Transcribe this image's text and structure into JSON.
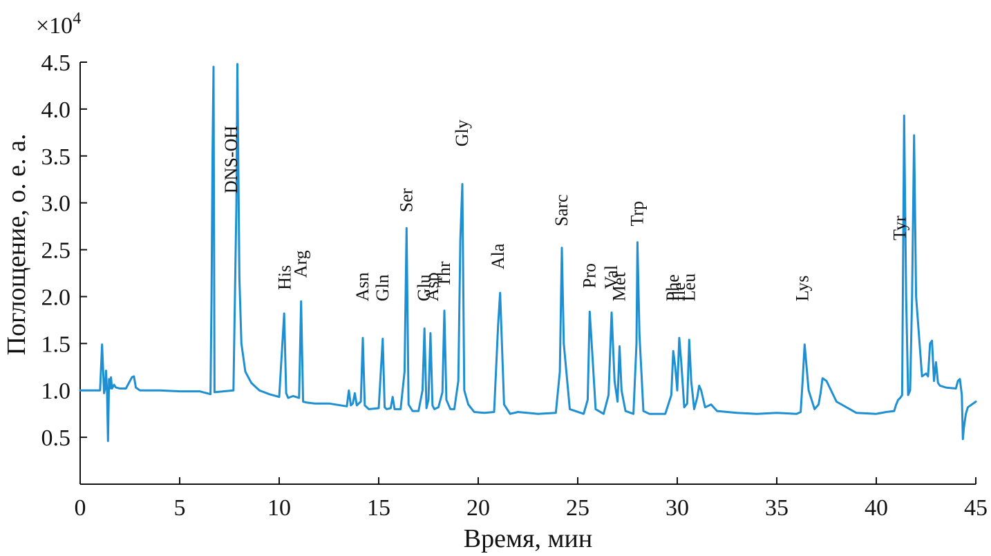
{
  "chart_data": {
    "type": "line",
    "title": "",
    "xlabel": "Время, мин",
    "ylabel": "Поглощение, о. е. а.",
    "y_multiplier": "×10",
    "y_multiplier_exp": "4",
    "xlim": [
      0,
      45
    ],
    "ylim": [
      0.0,
      4.5
    ],
    "x_ticks": [
      0,
      5,
      10,
      15,
      20,
      25,
      30,
      35,
      40,
      45
    ],
    "y_ticks": [
      0.5,
      1.0,
      1.5,
      2.0,
      2.5,
      3.0,
      3.5,
      4.0,
      4.5
    ],
    "y_tick_labels": [
      "0.5",
      "1.0",
      "1.5",
      "2.0",
      "2.5",
      "3.0",
      "3.5",
      "4.0",
      "4.5"
    ],
    "grid": false,
    "legend": "none",
    "color": "#1e90d2",
    "peaks": [
      {
        "label": "DNS-OH",
        "x": 7.6
      },
      {
        "label": "His",
        "x": 10.3
      },
      {
        "label": "Arg",
        "x": 11.1
      },
      {
        "label": "Asn",
        "x": 14.2
      },
      {
        "label": "Gln",
        "x": 15.2
      },
      {
        "label": "Ser",
        "x": 16.4
      },
      {
        "label": "Glu",
        "x": 17.3
      },
      {
        "label": "Asp",
        "x": 17.7
      },
      {
        "label": "Thr",
        "x": 18.3
      },
      {
        "label": "Gly",
        "x": 19.2
      },
      {
        "label": "Ala",
        "x": 21.0
      },
      {
        "label": "Sarc",
        "x": 24.2
      },
      {
        "label": "Pro",
        "x": 25.6
      },
      {
        "label": "Val",
        "x": 26.7
      },
      {
        "label": "Met",
        "x": 27.1
      },
      {
        "label": "Trp",
        "x": 28.0
      },
      {
        "label": "Phe",
        "x": 29.8
      },
      {
        "label": "Ile",
        "x": 30.1
      },
      {
        "label": "Leu",
        "x": 30.6
      },
      {
        "label": "Lys",
        "x": 36.3
      },
      {
        "label": "Tyr",
        "x": 41.2
      }
    ],
    "series": [
      {
        "x": [
          0,
          1.0,
          1.1,
          1.2,
          1.25,
          1.3,
          1.35,
          1.4,
          1.45,
          1.5,
          1.55,
          1.6,
          1.7,
          1.8,
          2.0,
          2.3,
          2.6,
          2.7,
          2.8,
          3.0,
          4.0,
          5.0,
          6.0,
          6.55,
          6.6,
          6.65,
          6.7,
          6.75,
          7.7,
          7.85,
          7.9,
          8.0,
          8.1,
          8.3,
          8.6,
          9.0,
          9.5,
          10.0,
          10.25,
          10.35,
          10.45,
          10.7,
          11.0,
          11.1,
          11.2,
          11.4,
          11.8,
          12.5,
          13.4,
          13.5,
          13.6,
          13.7,
          13.8,
          13.9,
          14.1,
          14.2,
          14.3,
          14.5,
          15.0,
          15.2,
          15.3,
          15.4,
          15.6,
          15.7,
          15.8,
          16.1,
          16.3,
          16.4,
          16.5,
          16.7,
          17.0,
          17.2,
          17.3,
          17.4,
          17.5,
          17.6,
          17.7,
          17.8,
          18.0,
          18.2,
          18.3,
          18.4,
          18.6,
          18.8,
          19.0,
          19.1,
          19.2,
          19.3,
          19.5,
          19.8,
          20.3,
          20.8,
          21.0,
          21.1,
          21.3,
          21.6,
          22.0,
          23.0,
          23.9,
          24.1,
          24.2,
          24.3,
          24.6,
          25.3,
          25.5,
          25.6,
          25.7,
          25.9,
          26.3,
          26.55,
          26.7,
          26.85,
          27.0,
          27.1,
          27.2,
          27.4,
          27.8,
          27.95,
          28.0,
          28.1,
          28.3,
          28.6,
          29.4,
          29.7,
          29.8,
          29.9,
          30.0,
          30.1,
          30.2,
          30.35,
          30.5,
          30.6,
          30.7,
          30.85,
          31.0,
          31.1,
          31.2,
          31.4,
          31.7,
          32.0,
          33.0,
          34.0,
          35.0,
          36.0,
          36.2,
          36.3,
          36.4,
          36.6,
          36.9,
          37.1,
          37.2,
          37.3,
          37.5,
          38.0,
          39.0,
          40.0,
          40.5,
          40.9,
          41.0,
          41.1,
          41.2,
          41.3,
          41.4,
          41.5,
          41.6,
          41.7,
          41.8,
          41.9,
          42.0,
          42.3,
          42.5,
          42.6,
          42.7,
          42.8,
          42.9,
          43.0,
          43.1,
          43.2,
          43.5,
          44.0,
          44.1,
          44.2,
          44.3,
          44.35,
          44.4,
          44.5,
          44.6,
          44.8,
          45.0
        ],
        "y": [
          1.0,
          1.0,
          1.49,
          0.97,
          1.02,
          1.21,
          0.99,
          0.46,
          1.12,
          1.02,
          1.14,
          1.02,
          1.06,
          1.03,
          1.02,
          1.02,
          1.14,
          1.15,
          1.03,
          1.0,
          1.0,
          0.99,
          0.99,
          0.96,
          2.0,
          3.5,
          4.45,
          0.98,
          1.0,
          3.0,
          4.48,
          2.2,
          1.5,
          1.2,
          1.08,
          1.0,
          0.96,
          0.93,
          1.82,
          0.97,
          0.92,
          0.94,
          0.92,
          1.95,
          0.88,
          0.87,
          0.86,
          0.86,
          0.83,
          1.0,
          0.84,
          0.86,
          0.97,
          0.84,
          0.88,
          1.56,
          0.84,
          0.8,
          0.81,
          1.55,
          0.82,
          0.8,
          0.81,
          0.93,
          0.8,
          0.8,
          1.2,
          2.73,
          0.85,
          0.78,
          0.78,
          1.0,
          1.66,
          0.81,
          0.9,
          1.61,
          0.84,
          0.8,
          0.82,
          0.98,
          1.85,
          0.9,
          0.8,
          0.8,
          1.1,
          2.6,
          3.2,
          1.0,
          0.85,
          0.77,
          0.76,
          0.77,
          1.7,
          2.04,
          0.85,
          0.75,
          0.77,
          0.75,
          0.76,
          1.2,
          2.52,
          1.5,
          0.8,
          0.75,
          0.9,
          1.84,
          1.5,
          0.8,
          0.75,
          0.95,
          1.83,
          1.1,
          0.88,
          1.47,
          1.0,
          0.78,
          0.75,
          1.5,
          2.58,
          1.6,
          0.78,
          0.75,
          0.75,
          0.95,
          1.42,
          1.25,
          1.0,
          1.56,
          1.3,
          0.82,
          0.86,
          1.54,
          1.1,
          0.8,
          0.92,
          1.05,
          1.0,
          0.82,
          0.85,
          0.78,
          0.76,
          0.75,
          0.76,
          0.75,
          0.77,
          1.1,
          1.49,
          1.0,
          0.8,
          0.85,
          0.97,
          1.13,
          1.1,
          0.88,
          0.76,
          0.75,
          0.77,
          0.78,
          0.85,
          0.9,
          0.92,
          0.95,
          3.93,
          2.0,
          0.95,
          1.0,
          2.0,
          3.72,
          2.0,
          1.15,
          1.18,
          1.15,
          1.5,
          1.53,
          1.1,
          1.3,
          1.08,
          1.05,
          1.03,
          1.02,
          1.1,
          1.12,
          0.95,
          0.48,
          0.6,
          0.75,
          0.82,
          0.85,
          0.88
        ]
      }
    ]
  }
}
